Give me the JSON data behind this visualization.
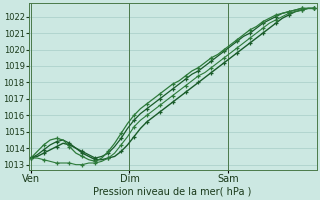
{
  "bg_color": "#cce8e2",
  "grid_color": "#a8cec8",
  "line_color_dark": "#1a5c2a",
  "line_color_mid": "#2d7a3a",
  "xlabel": "Pression niveau de la mer( hPa )",
  "xlabel_color": "#1a3a1a",
  "tick_label_color": "#1a3a1a",
  "axis_line_color": "#4a7a4a",
  "vline_color": "#4a7a4a",
  "ylim_min": 1012.7,
  "ylim_max": 1022.8,
  "yticks": [
    1013,
    1014,
    1015,
    1016,
    1017,
    1018,
    1019,
    1020,
    1021,
    1022
  ],
  "total_hours": 138,
  "xtick_positions": [
    0,
    48,
    96
  ],
  "xtick_labels": [
    "Ven",
    "Dim",
    "Sam"
  ],
  "vline_positions": [
    0,
    48,
    96
  ],
  "series": [
    [
      1013.4,
      1013.5,
      1013.7,
      1013.9,
      1014.1,
      1014.3,
      1014.2,
      1014.0,
      1013.7,
      1013.5,
      1013.3,
      1013.3,
      1013.4,
      1013.5,
      1013.8,
      1014.2,
      1014.7,
      1015.2,
      1015.6,
      1015.9,
      1016.2,
      1016.5,
      1016.8,
      1017.1,
      1017.4,
      1017.7,
      1018.0,
      1018.3,
      1018.6,
      1018.9,
      1019.2,
      1019.5,
      1019.8,
      1020.1,
      1020.4,
      1020.7,
      1021.0,
      1021.3,
      1021.6,
      1021.9,
      1022.1,
      1022.3,
      1022.4,
      1022.5,
      1022.5
    ],
    [
      1013.4,
      1013.4,
      1013.3,
      1013.2,
      1013.1,
      1013.1,
      1013.1,
      1013.0,
      1013.0,
      1013.1,
      1013.1,
      1013.2,
      1013.4,
      1013.7,
      1014.2,
      1014.7,
      1015.3,
      1015.7,
      1016.0,
      1016.3,
      1016.6,
      1016.9,
      1017.2,
      1017.5,
      1017.8,
      1018.1,
      1018.4,
      1018.6,
      1018.9,
      1019.2,
      1019.5,
      1019.8,
      1020.1,
      1020.4,
      1020.7,
      1021.0,
      1021.3,
      1021.6,
      1021.8,
      1022.0,
      1022.2,
      1022.3,
      1022.4,
      1022.5,
      1022.5
    ],
    [
      1013.4,
      1013.6,
      1013.9,
      1014.2,
      1014.4,
      1014.5,
      1014.3,
      1014.0,
      1013.8,
      1013.6,
      1013.4,
      1013.5,
      1013.7,
      1014.1,
      1014.6,
      1015.2,
      1015.7,
      1016.1,
      1016.4,
      1016.7,
      1017.0,
      1017.3,
      1017.6,
      1017.9,
      1018.2,
      1018.5,
      1018.7,
      1019.0,
      1019.3,
      1019.6,
      1019.9,
      1020.2,
      1020.5,
      1020.8,
      1021.0,
      1021.3,
      1021.6,
      1021.8,
      1022.0,
      1022.2,
      1022.3,
      1022.4,
      1022.5,
      1022.5,
      1022.5
    ],
    [
      1013.4,
      1013.8,
      1014.2,
      1014.5,
      1014.6,
      1014.5,
      1014.1,
      1013.7,
      1013.5,
      1013.3,
      1013.2,
      1013.4,
      1013.8,
      1014.3,
      1014.9,
      1015.5,
      1016.0,
      1016.4,
      1016.7,
      1017.0,
      1017.3,
      1017.6,
      1017.9,
      1018.1,
      1018.4,
      1018.7,
      1018.9,
      1019.2,
      1019.5,
      1019.7,
      1020.0,
      1020.3,
      1020.6,
      1020.9,
      1021.2,
      1021.4,
      1021.7,
      1021.9,
      1022.1,
      1022.2,
      1022.3,
      1022.4,
      1022.5,
      1022.5,
      1022.5
    ]
  ]
}
